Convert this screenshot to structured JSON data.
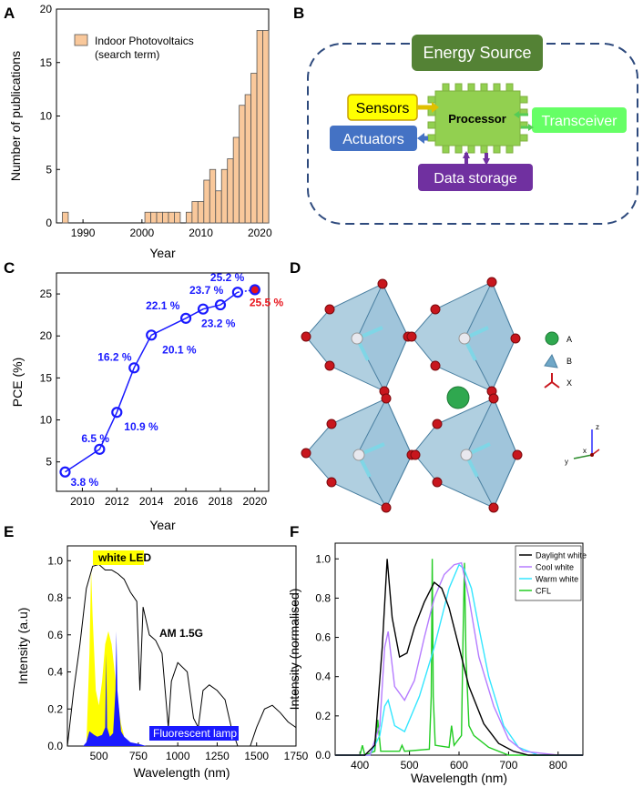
{
  "panels": {
    "A": {
      "label": "A"
    },
    "B": {
      "label": "B"
    },
    "C": {
      "label": "C"
    },
    "D": {
      "label": "D"
    },
    "E": {
      "label": "E"
    },
    "F": {
      "label": "F"
    }
  },
  "colors": {
    "bar_fill": "#f9c89b",
    "blue": "#1a1aff",
    "red": "#e8141c",
    "dash": "#2e4a7d",
    "energy": "#548235",
    "processor": "#92d050",
    "sensors": "#ffff00",
    "actuators": "#4472c4",
    "transceiver": "#66ff66",
    "storage": "#7030a0",
    "yellow": "#ffff00",
    "daylight": "#000000",
    "coolwhite": "#b57cff",
    "warmwhite": "#33e6ff",
    "cfl": "#22cc22"
  },
  "diagram": {
    "energy": "Energy Source",
    "processor": "Processor",
    "sensors": "Sensors",
    "actuators": "Actuators",
    "transceiver": "Transceiver",
    "storage": "Data storage"
  },
  "crystal": {
    "legend": [
      "A",
      "B",
      "X"
    ],
    "axes": {
      "z": "z",
      "x": "x",
      "y": "y"
    }
  },
  "chart_data": [
    {
      "panel": "A",
      "type": "bar",
      "xlabel": "Year",
      "ylabel": "Number of publications",
      "legend": [
        "Indoor Photovoltaics",
        "(search term)"
      ],
      "xlim": [
        1985.5,
        2021.5
      ],
      "ylim": [
        0,
        20
      ],
      "xticks": [
        "1990",
        "2000",
        "2010",
        "2020"
      ],
      "xtick_values": [
        1990,
        2000,
        2010,
        2020
      ],
      "yticks": [
        "0",
        "5",
        "10",
        "15",
        "20"
      ],
      "ytick_values": [
        0,
        5,
        10,
        15,
        20
      ],
      "x": [
        1987,
        2001,
        2002,
        2003,
        2004,
        2005,
        2006,
        2008,
        2009,
        2010,
        2011,
        2012,
        2013,
        2014,
        2015,
        2016,
        2017,
        2018,
        2019,
        2020,
        2021
      ],
      "values": [
        1,
        1,
        1,
        1,
        1,
        1,
        1,
        1,
        2,
        2,
        4,
        5,
        3,
        5,
        6,
        8,
        11,
        12,
        14,
        18,
        18
      ]
    },
    {
      "panel": "C",
      "type": "line",
      "xlabel": "Year",
      "ylabel": "PCE (%)",
      "xlim": [
        2008.5,
        2020.8
      ],
      "ylim": [
        1.5,
        27.5
      ],
      "xticks": [
        "2010",
        "2012",
        "2014",
        "2016",
        "2018",
        "2020"
      ],
      "xtick_values": [
        2010,
        2012,
        2014,
        2016,
        2018,
        2020
      ],
      "yticks": [
        "5",
        "10",
        "15",
        "20",
        "25"
      ],
      "ytick_values": [
        5,
        10,
        15,
        20,
        25
      ],
      "x": [
        2009,
        2011,
        2012,
        2013,
        2014,
        2016,
        2017,
        2018,
        2019,
        2020
      ],
      "y": [
        3.8,
        6.5,
        10.9,
        16.2,
        20.1,
        22.1,
        23.2,
        23.7,
        25.2,
        25.5
      ],
      "labels": [
        "3.8 %",
        "6.5 %",
        "10.9 %",
        "16.2 %",
        "20.1 %",
        "22.1 %",
        "23.2 %",
        "23.7 %",
        "25.2 %",
        "25.5 %"
      ]
    },
    {
      "panel": "E",
      "type": "area",
      "xlabel": "Wavelength (nm)",
      "ylabel": "Intensity (a.u)",
      "xlim": [
        300,
        1750
      ],
      "ylim": [
        0,
        1.08
      ],
      "xticks": [
        "500",
        "750",
        "1000",
        "1250",
        "1500",
        "1750"
      ],
      "xtick_values": [
        500,
        750,
        1000,
        1250,
        1500,
        1750
      ],
      "yticks": [
        "0.0",
        "0.2",
        "0.4",
        "0.6",
        "0.8",
        "1.0"
      ],
      "ytick_values": [
        0.0,
        0.2,
        0.4,
        0.6,
        0.8,
        1.0
      ],
      "annotations": [
        "white LED",
        "AM 1.5G",
        "Fluorescent lamp"
      ],
      "series": [
        {
          "name": "AM 1.5G",
          "x": [
            300,
            340,
            380,
            420,
            460,
            500,
            540,
            580,
            620,
            660,
            700,
            740,
            760,
            780,
            820,
            860,
            900,
            940,
            960,
            1000,
            1060,
            1100,
            1130,
            1160,
            1200,
            1250,
            1300,
            1340,
            1380,
            1420,
            1460,
            1500,
            1550,
            1600,
            1650,
            1700,
            1750
          ],
          "y": [
            0.0,
            0.3,
            0.55,
            0.85,
            0.97,
            0.98,
            0.95,
            0.95,
            0.93,
            0.9,
            0.83,
            0.78,
            0.3,
            0.75,
            0.6,
            0.57,
            0.5,
            0.1,
            0.35,
            0.45,
            0.4,
            0.15,
            0.1,
            0.3,
            0.33,
            0.3,
            0.25,
            0.1,
            0.0,
            0.0,
            0.0,
            0.1,
            0.2,
            0.22,
            0.18,
            0.13,
            0.1
          ]
        },
        {
          "name": "white LED",
          "x": [
            420,
            440,
            450,
            460,
            480,
            500,
            520,
            540,
            560,
            580,
            600,
            620,
            640,
            660,
            700
          ],
          "y": [
            0.0,
            0.5,
            0.95,
            0.7,
            0.3,
            0.22,
            0.35,
            0.55,
            0.62,
            0.55,
            0.4,
            0.25,
            0.12,
            0.05,
            0.0
          ]
        },
        {
          "name": "Fluorescent lamp",
          "x": [
            400,
            420,
            430,
            440,
            470,
            490,
            520,
            540,
            546,
            552,
            570,
            590,
            605,
            611,
            617,
            640,
            660,
            700,
            760,
            800
          ],
          "y": [
            0.0,
            0.02,
            0.05,
            0.08,
            0.06,
            0.05,
            0.06,
            0.1,
            0.5,
            0.1,
            0.05,
            0.07,
            0.3,
            0.62,
            0.3,
            0.08,
            0.05,
            0.02,
            0.01,
            0.0
          ]
        }
      ]
    },
    {
      "panel": "F",
      "type": "line",
      "xlabel": "Wavelength (nm)",
      "ylabel": "Intensity (normalised)",
      "xlim": [
        350,
        850
      ],
      "ylim": [
        0,
        1.08
      ],
      "xticks": [
        "400",
        "500",
        "600",
        "700",
        "800"
      ],
      "xtick_values": [
        400,
        500,
        600,
        700,
        800
      ],
      "yticks": [
        "0.0",
        "0.2",
        "0.4",
        "0.6",
        "0.8",
        "1.0"
      ],
      "ytick_values": [
        0.0,
        0.2,
        0.4,
        0.6,
        0.8,
        1.0
      ],
      "series": [
        {
          "name": "Daylight white",
          "x": [
            350,
            410,
            430,
            445,
            455,
            465,
            480,
            495,
            510,
            530,
            550,
            565,
            580,
            600,
            620,
            650,
            680,
            710,
            740,
            800,
            850
          ],
          "y": [
            0.0,
            0.0,
            0.05,
            0.55,
            1.0,
            0.7,
            0.5,
            0.52,
            0.65,
            0.78,
            0.88,
            0.85,
            0.75,
            0.55,
            0.35,
            0.16,
            0.06,
            0.02,
            0.0,
            0.0,
            0.0
          ]
        },
        {
          "name": "Cool white",
          "x": [
            350,
            420,
            440,
            450,
            457,
            470,
            490,
            510,
            530,
            550,
            570,
            590,
            605,
            620,
            640,
            670,
            700,
            730,
            800,
            850
          ],
          "y": [
            0.0,
            0.0,
            0.15,
            0.55,
            0.63,
            0.35,
            0.28,
            0.38,
            0.6,
            0.8,
            0.92,
            0.97,
            0.98,
            0.8,
            0.5,
            0.25,
            0.08,
            0.02,
            0.0,
            0.0
          ]
        },
        {
          "name": "Warm white",
          "x": [
            350,
            420,
            440,
            450,
            457,
            470,
            490,
            520,
            550,
            580,
            600,
            610,
            625,
            640,
            660,
            690,
            720,
            760,
            850
          ],
          "y": [
            0.0,
            0.0,
            0.1,
            0.25,
            0.28,
            0.15,
            0.12,
            0.3,
            0.55,
            0.85,
            0.97,
            0.95,
            0.85,
            0.65,
            0.4,
            0.15,
            0.04,
            0.0,
            0.0
          ]
        },
        {
          "name": "CFL",
          "x": [
            350,
            400,
            405,
            410,
            430,
            436,
            442,
            480,
            485,
            490,
            540,
            544,
            546,
            548,
            552,
            580,
            585,
            590,
            605,
            608,
            611,
            614,
            620,
            630,
            660,
            700,
            850
          ],
          "y": [
            0.0,
            0.0,
            0.05,
            0.0,
            0.02,
            0.18,
            0.02,
            0.02,
            0.05,
            0.02,
            0.03,
            0.3,
            1.0,
            0.3,
            0.05,
            0.04,
            0.15,
            0.05,
            0.1,
            0.6,
            0.98,
            0.5,
            0.15,
            0.1,
            0.04,
            0.0,
            0.0
          ]
        }
      ]
    }
  ]
}
